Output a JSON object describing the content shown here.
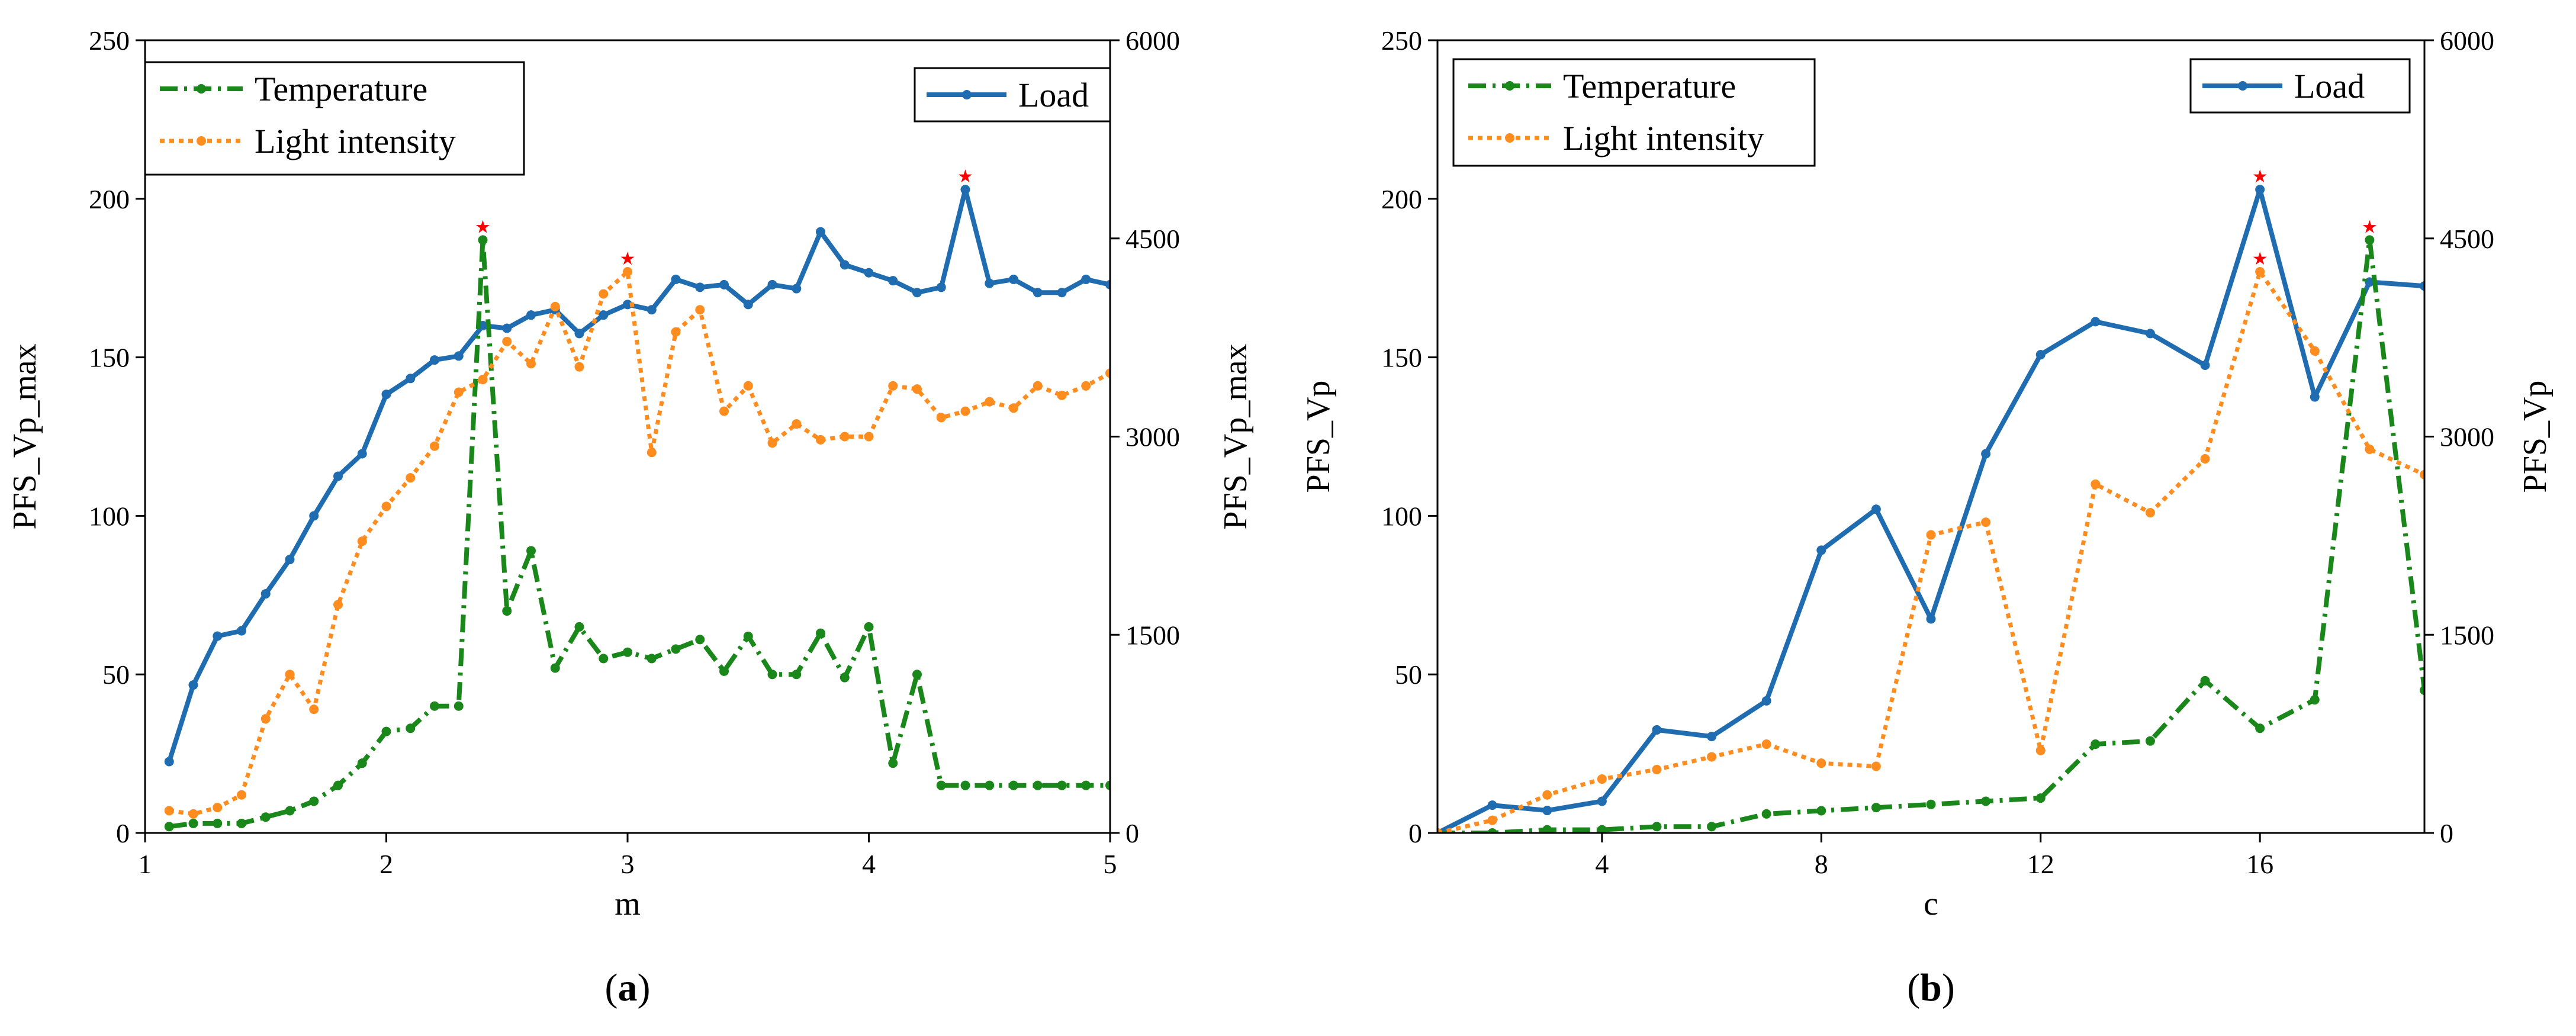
{
  "colors": {
    "load": "#1F6DB0",
    "temperature": "#198719",
    "light": "#FF8C1E",
    "peak_marker": "#FF0000"
  },
  "chart_data": [
    {
      "panel": "(a)",
      "panel_letter": "a",
      "type": "line",
      "xlabel": "m",
      "ylabel_left": "PFS_Vp_max",
      "ylabel_right": "PFS_Vp_max",
      "xlim": [
        1,
        5
      ],
      "ylim_left": [
        0,
        250
      ],
      "ylim_right": [
        0,
        6000
      ],
      "xticks": [
        "1",
        "2",
        "3",
        "4",
        "5"
      ],
      "yticks_left": [
        "0",
        "50",
        "100",
        "150",
        "200",
        "250"
      ],
      "yticks_right": [
        "0",
        "1500",
        "3000",
        "4500",
        "6000"
      ],
      "legend_left": [
        "Temperature",
        "Light intensity"
      ],
      "legend_right": [
        "Load"
      ],
      "x": [
        1.1,
        1.2,
        1.3,
        1.4,
        1.5,
        1.6,
        1.7,
        1.8,
        1.9,
        2.0,
        2.1,
        2.2,
        2.3,
        2.4,
        2.5,
        2.6,
        2.7,
        2.8,
        2.9,
        3.0,
        3.1,
        3.2,
        3.3,
        3.4,
        3.5,
        3.6,
        3.7,
        3.8,
        3.9,
        4.0,
        4.1,
        4.2,
        4.3,
        4.4,
        4.5,
        4.6,
        4.7,
        4.8,
        4.9,
        5.0
      ],
      "series": [
        {
          "name": "Load",
          "axis": "right",
          "style": "solid",
          "peak_index": 33,
          "values": [
            540,
            1120,
            1490,
            1530,
            1810,
            2070,
            2400,
            2700,
            2870,
            3320,
            3440,
            3580,
            3610,
            3840,
            3820,
            3920,
            3960,
            3780,
            3920,
            4000,
            3960,
            4190,
            4130,
            4150,
            4000,
            4150,
            4120,
            4550,
            4300,
            4240,
            4180,
            4090,
            4130,
            4870,
            4160,
            4190,
            4090,
            4090,
            4190,
            4150
          ]
        },
        {
          "name": "Temperature",
          "axis": "left",
          "style": "dashdot",
          "peak_index": 13,
          "values": [
            2,
            3,
            3,
            3,
            5,
            7,
            10,
            15,
            22,
            32,
            33,
            40,
            40,
            187,
            70,
            89,
            52,
            65,
            55,
            57,
            55,
            58,
            61,
            51,
            62,
            50,
            50,
            63,
            49,
            65,
            22,
            50,
            15,
            15,
            15,
            15,
            15,
            15,
            15,
            15
          ]
        },
        {
          "name": "Light intensity",
          "axis": "left",
          "style": "dotted",
          "peak_index": 19,
          "values": [
            7,
            6,
            8,
            12,
            36,
            50,
            39,
            72,
            92,
            103,
            112,
            122,
            139,
            143,
            155,
            148,
            166,
            147,
            170,
            177,
            120,
            158,
            165,
            133,
            141,
            123,
            129,
            124,
            125,
            125,
            141,
            140,
            131,
            133,
            136,
            134,
            141,
            138,
            141,
            145
          ]
        }
      ]
    },
    {
      "panel": "(b)",
      "panel_letter": "b",
      "type": "line",
      "xlabel": "c",
      "ylabel_left": "PFS_Vp",
      "ylabel_right": "PFS_Vp",
      "xlim": [
        1,
        19
      ],
      "ylim_left": [
        0,
        250
      ],
      "ylim_right": [
        0,
        6000
      ],
      "xticks": [
        "4",
        "8",
        "12",
        "16"
      ],
      "yticks_left": [
        "0",
        "50",
        "100",
        "150",
        "200",
        "250"
      ],
      "yticks_right": [
        "0",
        "1500",
        "3000",
        "4500",
        "6000"
      ],
      "legend_left": [
        "Temperature",
        "Light intensity"
      ],
      "legend_right": [
        "Load"
      ],
      "x": [
        1,
        2,
        3,
        4,
        5,
        6,
        7,
        8,
        9,
        10,
        11,
        12,
        13,
        14,
        15,
        16,
        17,
        18,
        19
      ],
      "series": [
        {
          "name": "Load",
          "axis": "right",
          "style": "solid",
          "peak_index": 15,
          "values": [
            0,
            210,
            170,
            240,
            780,
            730,
            1000,
            2140,
            2450,
            1620,
            2870,
            3620,
            3870,
            3780,
            3540,
            4870,
            3300,
            4170,
            4140
          ]
        },
        {
          "name": "Temperature",
          "axis": "left",
          "style": "dashdot",
          "peak_index": 17,
          "values": [
            0,
            0,
            1,
            1,
            2,
            2,
            6,
            7,
            8,
            9,
            10,
            11,
            28,
            29,
            48,
            33,
            42,
            187,
            45
          ]
        },
        {
          "name": "Light intensity",
          "axis": "left",
          "style": "dotted",
          "peak_index": 15,
          "values": [
            0,
            4,
            12,
            17,
            20,
            24,
            28,
            22,
            21,
            94,
            98,
            26,
            110,
            101,
            118,
            177,
            152,
            121,
            113
          ]
        }
      ]
    }
  ]
}
